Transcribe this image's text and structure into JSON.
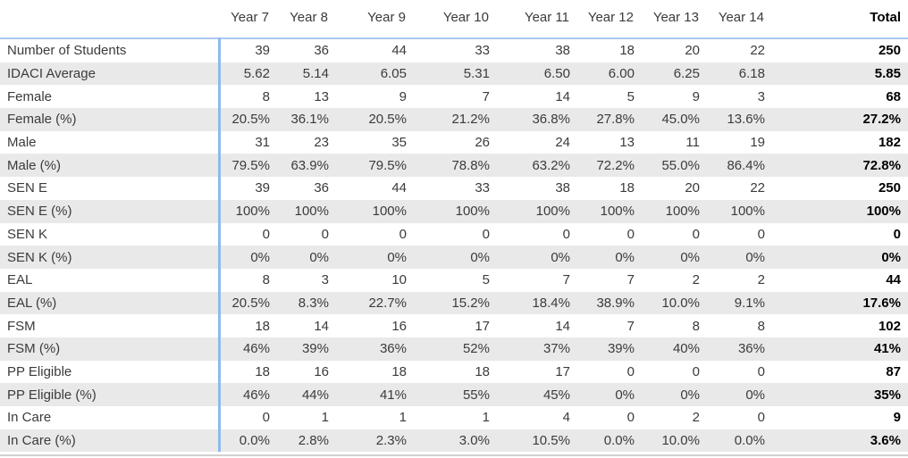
{
  "chart_data": {
    "type": "table",
    "columns": [
      "",
      "Year 7",
      "Year 8",
      "Year 9",
      "Year 10",
      "Year 11",
      "Year 12",
      "Year 13",
      "Year 14",
      "Total"
    ],
    "rows": [
      {
        "label": "Number of Students",
        "values": [
          "39",
          "36",
          "44",
          "33",
          "38",
          "18",
          "20",
          "22"
        ],
        "total": "250"
      },
      {
        "label": "IDACI Average",
        "values": [
          "5.62",
          "5.14",
          "6.05",
          "5.31",
          "6.50",
          "6.00",
          "6.25",
          "6.18"
        ],
        "total": "5.85"
      },
      {
        "label": "Female",
        "values": [
          "8",
          "13",
          "9",
          "7",
          "14",
          "5",
          "9",
          "3"
        ],
        "total": "68"
      },
      {
        "label": "Female (%)",
        "values": [
          "20.5%",
          "36.1%",
          "20.5%",
          "21.2%",
          "36.8%",
          "27.8%",
          "45.0%",
          "13.6%"
        ],
        "total": "27.2%"
      },
      {
        "label": "Male",
        "values": [
          "31",
          "23",
          "35",
          "26",
          "24",
          "13",
          "11",
          "19"
        ],
        "total": "182"
      },
      {
        "label": "Male (%)",
        "values": [
          "79.5%",
          "63.9%",
          "79.5%",
          "78.8%",
          "63.2%",
          "72.2%",
          "55.0%",
          "86.4%"
        ],
        "total": "72.8%"
      },
      {
        "label": "SEN E",
        "values": [
          "39",
          "36",
          "44",
          "33",
          "38",
          "18",
          "20",
          "22"
        ],
        "total": "250"
      },
      {
        "label": "SEN E (%)",
        "values": [
          "100%",
          "100%",
          "100%",
          "100%",
          "100%",
          "100%",
          "100%",
          "100%"
        ],
        "total": "100%"
      },
      {
        "label": "SEN K",
        "values": [
          "0",
          "0",
          "0",
          "0",
          "0",
          "0",
          "0",
          "0"
        ],
        "total": "0"
      },
      {
        "label": "SEN K (%)",
        "values": [
          "0%",
          "0%",
          "0%",
          "0%",
          "0%",
          "0%",
          "0%",
          "0%"
        ],
        "total": "0%"
      },
      {
        "label": "EAL",
        "values": [
          "8",
          "3",
          "10",
          "5",
          "7",
          "7",
          "2",
          "2"
        ],
        "total": "44"
      },
      {
        "label": "EAL (%)",
        "values": [
          "20.5%",
          "8.3%",
          "22.7%",
          "15.2%",
          "18.4%",
          "38.9%",
          "10.0%",
          "9.1%"
        ],
        "total": "17.6%"
      },
      {
        "label": "FSM",
        "values": [
          "18",
          "14",
          "16",
          "17",
          "14",
          "7",
          "8",
          "8"
        ],
        "total": "102"
      },
      {
        "label": "FSM (%)",
        "values": [
          "46%",
          "39%",
          "36%",
          "52%",
          "37%",
          "39%",
          "40%",
          "36%"
        ],
        "total": "41%"
      },
      {
        "label": "PP Eligible",
        "values": [
          "18",
          "16",
          "18",
          "18",
          "17",
          "0",
          "0",
          "0"
        ],
        "total": "87"
      },
      {
        "label": "PP Eligible (%)",
        "values": [
          "46%",
          "44%",
          "41%",
          "55%",
          "45%",
          "0%",
          "0%",
          "0%"
        ],
        "total": "35%"
      },
      {
        "label": "In Care",
        "values": [
          "0",
          "1",
          "1",
          "1",
          "4",
          "0",
          "2",
          "0"
        ],
        "total": "9"
      },
      {
        "label": "In Care (%)",
        "values": [
          "0.0%",
          "2.8%",
          "2.3%",
          "3.0%",
          "10.5%",
          "0.0%",
          "10.0%",
          "0.0%"
        ],
        "total": "3.6%"
      }
    ],
    "layout_hints": {
      "total_column_bold": true,
      "alternating_rows": true,
      "values_right_aligned": true
    }
  },
  "colors": {
    "alt_row_background": "#E9E9E9",
    "row_label_divider_blue": "#8FB9EE",
    "header_underline_blue": "#ABC8F2",
    "text": "#3B3B3B",
    "total_text": "#000000",
    "table_bottom_border": "#D0D0D0"
  }
}
